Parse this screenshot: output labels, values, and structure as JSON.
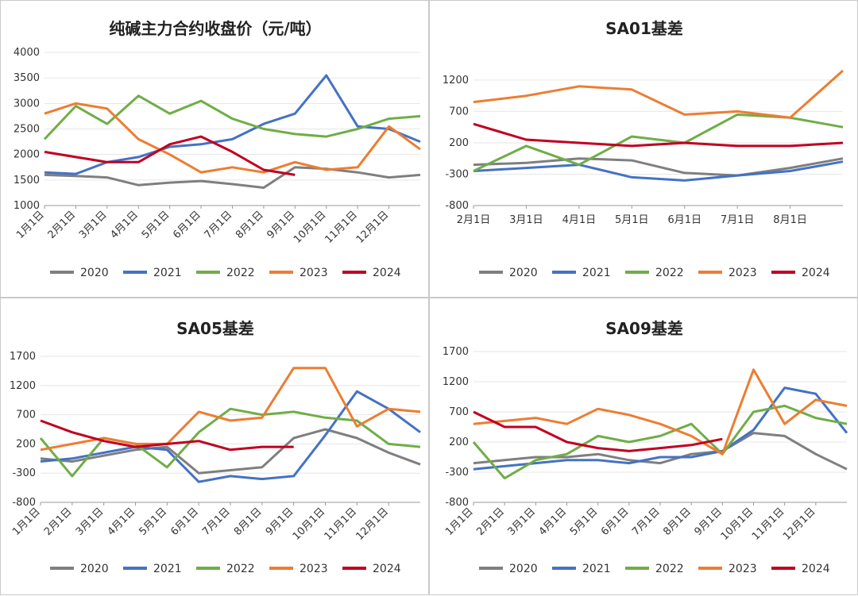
{
  "colors": {
    "2020": "#7f7f7f",
    "2021": "#4472c4",
    "2022": "#70ad47",
    "2023": "#ed7d31",
    "2024": "#c00020"
  },
  "chart_data": [
    {
      "type": "line",
      "title": "纯碱主力合约收盘价（元/吨）",
      "ylim": [
        1000,
        4000
      ],
      "yticks": [
        "4000",
        "3500",
        "3000",
        "2500",
        "2000",
        "1500",
        "1000"
      ],
      "xticks": [
        "1月1日",
        "2月1日",
        "3月1日",
        "4月1日",
        "5月1日",
        "6月1日",
        "7月1日",
        "8月1日",
        "9月1日",
        "10月1日",
        "11月1日",
        "12月1日"
      ],
      "x": [
        1,
        2,
        3,
        4,
        5,
        6,
        7,
        8,
        9,
        10,
        11,
        12,
        13
      ],
      "series": [
        {
          "name": "2020",
          "values": [
            1600,
            1580,
            1550,
            1400,
            1450,
            1480,
            1420,
            1350,
            1750,
            1720,
            1650,
            1550,
            1600
          ]
        },
        {
          "name": "2021",
          "values": [
            1650,
            1620,
            1850,
            1950,
            2150,
            2200,
            2300,
            2600,
            2800,
            3550,
            2550,
            2500,
            2250
          ]
        },
        {
          "name": "2022",
          "values": [
            2300,
            2950,
            2600,
            3150,
            2800,
            3050,
            2700,
            2500,
            2400,
            2350,
            2500,
            2700,
            2750
          ]
        },
        {
          "name": "2023",
          "values": [
            2800,
            3000,
            2900,
            2300,
            2000,
            1650,
            1750,
            1650,
            1850,
            1700,
            1750,
            2550,
            2100
          ]
        },
        {
          "name": "2024",
          "values": [
            2050,
            1950,
            1850,
            1850,
            2200,
            2350,
            2050,
            1700,
            1600,
            null,
            null,
            null,
            null
          ]
        }
      ],
      "legend": [
        "2020",
        "2021",
        "2022",
        "2023",
        "2024"
      ]
    },
    {
      "type": "line",
      "title": "SA01基差",
      "ylim": [
        -800,
        1300
      ],
      "yticks": [
        "1200",
        "700",
        "200",
        "-300",
        "-800"
      ],
      "xticks": [
        "2月1日",
        "3月1日",
        "4月1日",
        "5月1日",
        "6月1日",
        "7月1日",
        "8月1日"
      ],
      "x": [
        1,
        2,
        3,
        4,
        5,
        6,
        7,
        8
      ],
      "series": [
        {
          "name": "2020",
          "values": [
            -150,
            -120,
            -50,
            -80,
            -280,
            -320,
            -200,
            -50
          ]
        },
        {
          "name": "2021",
          "values": [
            -250,
            -200,
            -150,
            -350,
            -400,
            -320,
            -250,
            -100
          ]
        },
        {
          "name": "2022",
          "values": [
            -250,
            150,
            -150,
            300,
            200,
            650,
            600,
            450
          ]
        },
        {
          "name": "2023",
          "values": [
            850,
            950,
            1100,
            1050,
            650,
            700,
            600,
            1350
          ]
        },
        {
          "name": "2024",
          "values": [
            500,
            250,
            200,
            150,
            200,
            150,
            150,
            200
          ]
        }
      ],
      "legend": [
        "2020",
        "2021",
        "2022",
        "2023",
        "2024"
      ]
    },
    {
      "type": "line",
      "title": "SA05基差",
      "ylim": [
        -800,
        1700
      ],
      "yticks": [
        "1700",
        "1200",
        "700",
        "200",
        "-300",
        "-800"
      ],
      "xticks": [
        "1月1日",
        "2月1日",
        "3月1日",
        "4月1日",
        "5月1日",
        "6月1日",
        "7月1日",
        "8月1日",
        "9月1日",
        "10月1日",
        "11月1日",
        "12月1日"
      ],
      "x": [
        1,
        2,
        3,
        4,
        5,
        6,
        7,
        8,
        9,
        10,
        11,
        12,
        13
      ],
      "series": [
        {
          "name": "2020",
          "values": [
            -50,
            -100,
            0,
            100,
            150,
            -300,
            -250,
            -200,
            300,
            450,
            300,
            50,
            -150
          ]
        },
        {
          "name": "2021",
          "values": [
            -100,
            -50,
            50,
            150,
            100,
            -450,
            -350,
            -400,
            -350,
            350,
            1100,
            800,
            400
          ]
        },
        {
          "name": "2022",
          "values": [
            300,
            -350,
            300,
            200,
            -200,
            400,
            800,
            700,
            750,
            650,
            600,
            200,
            150
          ]
        },
        {
          "name": "2023",
          "values": [
            100,
            200,
            300,
            200,
            200,
            750,
            600,
            650,
            1500,
            1500,
            500,
            800,
            750
          ]
        },
        {
          "name": "2024",
          "values": [
            600,
            400,
            250,
            150,
            200,
            250,
            100,
            150,
            150,
            null,
            null,
            null,
            null
          ]
        }
      ],
      "legend": [
        "2020",
        "2021",
        "2022",
        "2023",
        "2024"
      ]
    },
    {
      "type": "line",
      "title": "SA09基差",
      "ylim": [
        -800,
        1700
      ],
      "yticks": [
        "1700",
        "1200",
        "700",
        "200",
        "-300",
        "-800"
      ],
      "xticks": [
        "1月1日",
        "2月1日",
        "3月1日",
        "4月1日",
        "5月1日",
        "6月1日",
        "7月1日",
        "8月1日",
        "9月1日",
        "10月1日",
        "11月1日",
        "12月1日"
      ],
      "x": [
        1,
        2,
        3,
        4,
        5,
        6,
        7,
        8,
        9,
        10,
        11,
        12,
        13
      ],
      "series": [
        {
          "name": "2020",
          "values": [
            -150,
            -100,
            -50,
            -50,
            0,
            -100,
            -150,
            0,
            50,
            350,
            300,
            0,
            -250
          ]
        },
        {
          "name": "2021",
          "values": [
            -250,
            -200,
            -150,
            -100,
            -100,
            -150,
            -50,
            -50,
            50,
            400,
            1100,
            1000,
            350
          ]
        },
        {
          "name": "2022",
          "values": [
            200,
            -400,
            -100,
            0,
            300,
            200,
            300,
            500,
            0,
            700,
            800,
            600,
            500
          ]
        },
        {
          "name": "2023",
          "values": [
            500,
            550,
            600,
            500,
            750,
            650,
            500,
            300,
            0,
            1400,
            500,
            900,
            800
          ]
        },
        {
          "name": "2024",
          "values": [
            700,
            450,
            450,
            200,
            100,
            50,
            100,
            150,
            250,
            null,
            null,
            null,
            null
          ]
        }
      ],
      "legend": [
        "2020",
        "2021",
        "2022",
        "2023",
        "2024"
      ]
    }
  ]
}
